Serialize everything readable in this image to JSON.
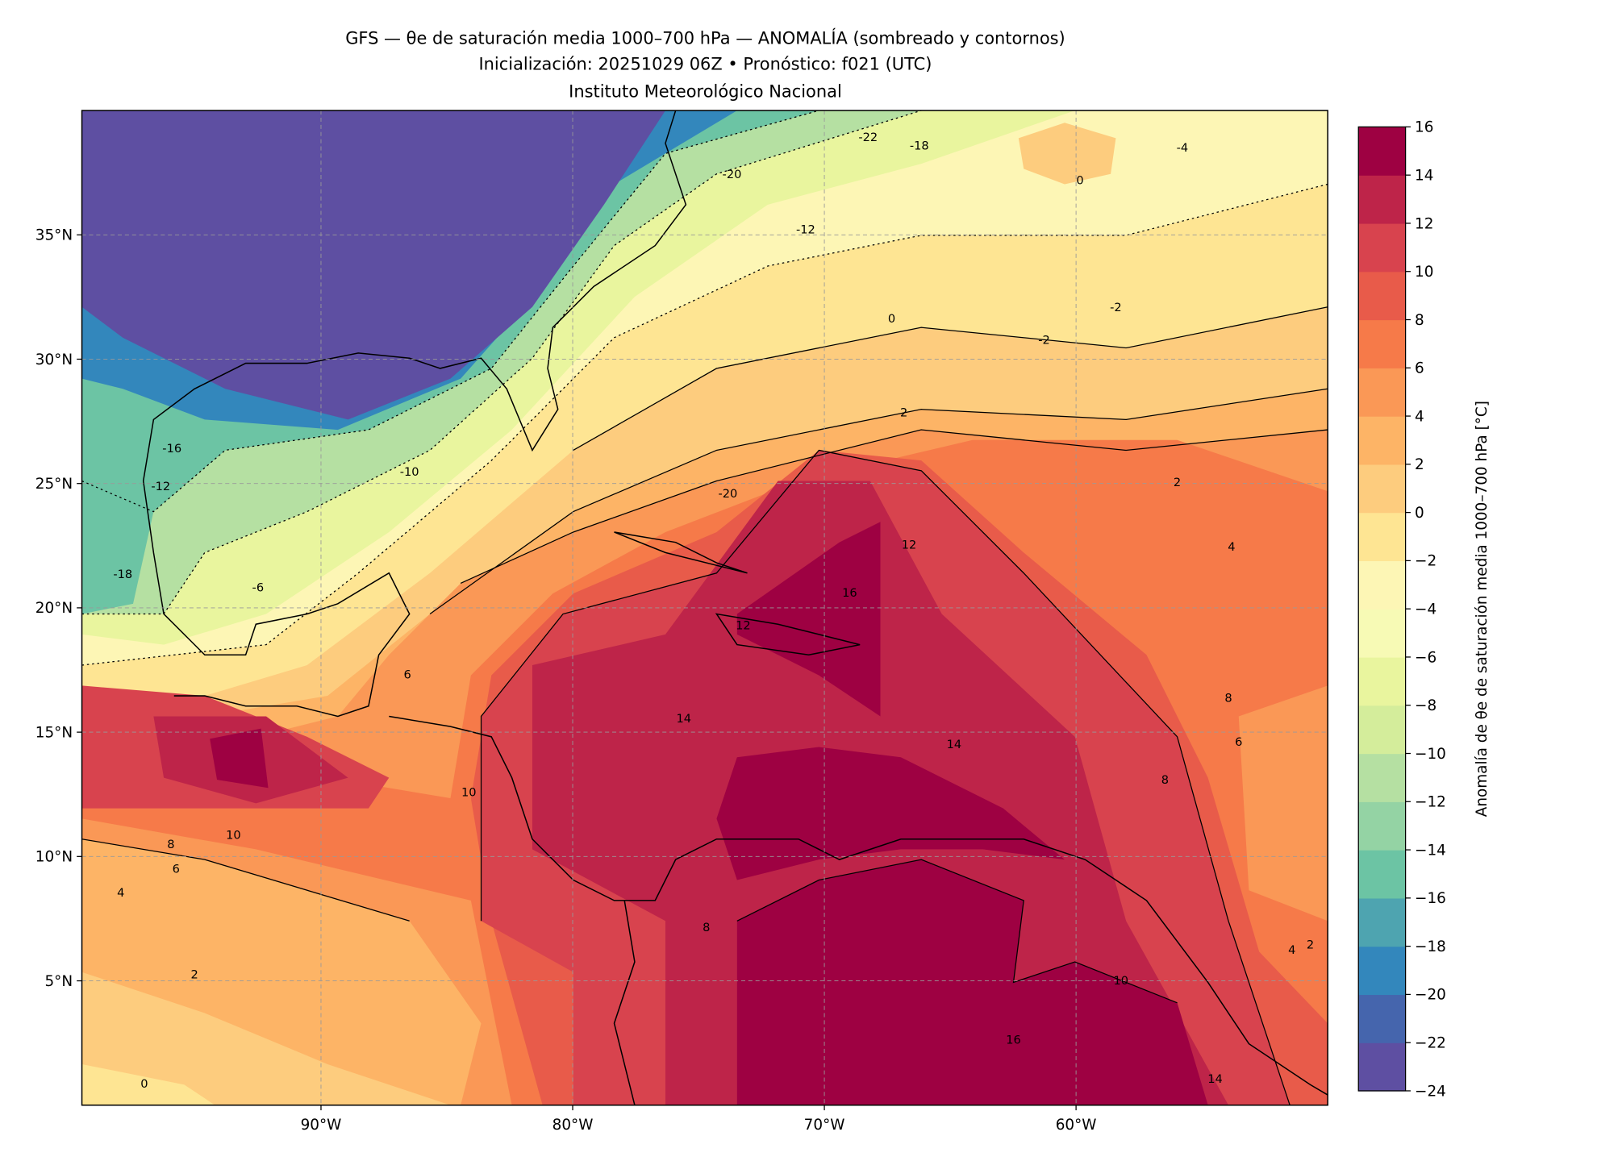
{
  "chart_data": {
    "type": "heatmap",
    "subtype": "filled-contour map with contour lines",
    "title": "GFS — θe de saturación media 1000–700 hPa — ANOMALÍA (sombreado y contornos)",
    "subtitle": "Inicialización: 20251029 06Z   •   Pronóstico: f021 (UTC)",
    "credit": "Instituto Meteorológico Nacional",
    "xlabel": "",
    "ylabel": "",
    "xlim": [
      -99.5,
      -50
    ],
    "ylim": [
      0,
      40
    ],
    "grid": true,
    "x_ticks": [
      {
        "value": -90,
        "label": "90°W"
      },
      {
        "value": -80,
        "label": "80°W"
      },
      {
        "value": -70,
        "label": "70°W"
      },
      {
        "value": -60,
        "label": "60°W"
      }
    ],
    "y_ticks": [
      {
        "value": 5,
        "label": "5°N"
      },
      {
        "value": 10,
        "label": "10°N"
      },
      {
        "value": 15,
        "label": "15°N"
      },
      {
        "value": 20,
        "label": "20°N"
      },
      {
        "value": 25,
        "label": "25°N"
      },
      {
        "value": 30,
        "label": "30°N"
      },
      {
        "value": 35,
        "label": "35°N"
      }
    ],
    "colorbar": {
      "label": "Anomalía de θe de saturación media 1000–700 hPa [°C]",
      "levels": [
        -24,
        -22,
        -20,
        -18,
        -16,
        -14,
        -12,
        -10,
        -8,
        -6,
        -4,
        -2,
        0,
        2,
        4,
        6,
        8,
        10,
        12,
        14,
        16
      ],
      "tick_labels": [
        "−24",
        "−22",
        "−20",
        "−18",
        "−16",
        "−14",
        "−12",
        "−10",
        "−8",
        "−6",
        "−4",
        "−2",
        "0",
        "2",
        "4",
        "6",
        "8",
        "10",
        "12",
        "14",
        "16"
      ],
      "colors": [
        "#5e4fa2",
        "#4565ad",
        "#3387bc",
        "#4ea4b0",
        "#6cc4a4",
        "#94d3a4",
        "#b5e0a2",
        "#d4ed9b",
        "#e9f59e",
        "#f7fab5",
        "#fdf6b5",
        "#fee593",
        "#fdcc7e",
        "#fdb466",
        "#fa9856",
        "#f67a49",
        "#e85b4a",
        "#d8434e",
        "#be2449",
        "#9e0142"
      ]
    },
    "contour_labels": [
      "-22",
      "-20",
      "-18",
      "-16",
      "-12",
      "-10",
      "-6",
      "-4",
      "-2",
      "0",
      "2",
      "4",
      "6",
      "8",
      "10",
      "12",
      "14",
      "16",
      "10",
      "8",
      "6",
      "4",
      "2",
      "0",
      "-2",
      "0",
      "2",
      "4",
      "6",
      "8",
      "12",
      "14",
      "16",
      "10",
      "14",
      "2",
      "8",
      "-12",
      "-18",
      "-20"
    ]
  }
}
